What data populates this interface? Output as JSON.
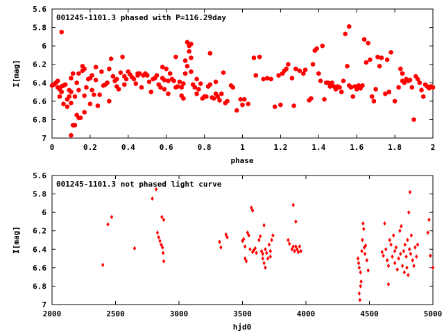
{
  "chart_data": [
    {
      "type": "scatter",
      "title": "001245-1101.3 phased with P=116.29day",
      "xlabel": "phase",
      "ylabel": "I[mag]",
      "xlim": [
        0,
        2
      ],
      "ylim": [
        5.6,
        7
      ],
      "y_inverted": true,
      "grid": false,
      "xticks": [
        "0",
        "0.2",
        "0.4",
        "0.6",
        "0.8",
        "1",
        "1.2",
        "1.4",
        "1.6",
        "1.8",
        "2"
      ],
      "yticks": [
        "5.6",
        "5.8",
        "6",
        "6.2",
        "6.4",
        "6.6",
        "6.8",
        "7"
      ],
      "marker": "hexagon",
      "color": "#ff0000",
      "points": [
        [
          0.0,
          6.43
        ],
        [
          0.01,
          6.42
        ],
        [
          0.02,
          6.4
        ],
        [
          0.03,
          6.38
        ],
        [
          0.03,
          6.45
        ],
        [
          0.04,
          6.47
        ],
        [
          0.04,
          6.55
        ],
        [
          0.05,
          5.85
        ],
        [
          0.05,
          6.44
        ],
        [
          0.05,
          6.5
        ],
        [
          0.06,
          6.43
        ],
        [
          0.06,
          6.63
        ],
        [
          0.07,
          6.42
        ],
        [
          0.08,
          6.58
        ],
        [
          0.08,
          6.66
        ],
        [
          0.09,
          6.55
        ],
        [
          0.09,
          6.48
        ],
        [
          0.1,
          6.62
        ],
        [
          0.1,
          6.35
        ],
        [
          0.1,
          6.5
        ],
        [
          0.1,
          6.97
        ],
        [
          0.11,
          6.86
        ],
        [
          0.11,
          6.3
        ],
        [
          0.12,
          6.86
        ],
        [
          0.12,
          6.55
        ],
        [
          0.13,
          6.75
        ],
        [
          0.13,
          6.4
        ],
        [
          0.14,
          6.48
        ],
        [
          0.14,
          6.78
        ],
        [
          0.14,
          6.3
        ],
        [
          0.15,
          6.78
        ],
        [
          0.16,
          6.27
        ],
        [
          0.16,
          6.22
        ],
        [
          0.17,
          6.72
        ],
        [
          0.17,
          6.54
        ],
        [
          0.17,
          6.25
        ],
        [
          0.18,
          6.45
        ],
        [
          0.19,
          6.36
        ],
        [
          0.2,
          6.35
        ],
        [
          0.2,
          6.63
        ],
        [
          0.21,
          6.32
        ],
        [
          0.21,
          6.48
        ],
        [
          0.22,
          6.53
        ],
        [
          0.23,
          6.37
        ],
        [
          0.23,
          6.23
        ],
        [
          0.24,
          6.65
        ],
        [
          0.25,
          6.53
        ],
        [
          0.26,
          6.28
        ],
        [
          0.27,
          6.43
        ],
        [
          0.28,
          6.42
        ],
        [
          0.29,
          6.4
        ],
        [
          0.3,
          6.6
        ],
        [
          0.3,
          6.25
        ],
        [
          0.31,
          6.14
        ],
        [
          0.32,
          6.33
        ],
        [
          0.33,
          6.38
        ],
        [
          0.34,
          6.36
        ],
        [
          0.34,
          6.44
        ],
        [
          0.35,
          6.47
        ],
        [
          0.36,
          6.29
        ],
        [
          0.37,
          6.12
        ],
        [
          0.38,
          6.33
        ],
        [
          0.38,
          6.42
        ],
        [
          0.39,
          6.36
        ],
        [
          0.4,
          6.28
        ],
        [
          0.41,
          6.31
        ],
        [
          0.42,
          6.34
        ],
        [
          0.43,
          6.36
        ],
        [
          0.44,
          6.41
        ],
        [
          0.45,
          6.3
        ],
        [
          0.45,
          6.32
        ],
        [
          0.46,
          6.3
        ],
        [
          0.47,
          6.45
        ],
        [
          0.48,
          6.32
        ],
        [
          0.49,
          6.3
        ],
        [
          0.5,
          6.32
        ],
        [
          0.51,
          6.39
        ],
        [
          0.52,
          6.5
        ],
        [
          0.53,
          6.36
        ],
        [
          0.54,
          6.35
        ],
        [
          0.55,
          6.32
        ],
        [
          0.56,
          6.42
        ],
        [
          0.57,
          6.45
        ],
        [
          0.58,
          6.23
        ],
        [
          0.58,
          6.35
        ],
        [
          0.59,
          6.37
        ],
        [
          0.59,
          6.47
        ],
        [
          0.6,
          6.25
        ],
        [
          0.61,
          6.38
        ],
        [
          0.61,
          6.52
        ],
        [
          0.62,
          6.3
        ],
        [
          0.63,
          6.36
        ],
        [
          0.64,
          6.38
        ],
        [
          0.65,
          6.45
        ],
        [
          0.65,
          6.12
        ],
        [
          0.66,
          6.44
        ],
        [
          0.67,
          6.39
        ],
        [
          0.68,
          6.45
        ],
        [
          0.68,
          6.54
        ],
        [
          0.69,
          6.41
        ],
        [
          0.69,
          6.57
        ],
        [
          0.7,
          6.3
        ],
        [
          0.7,
          6.16
        ],
        [
          0.71,
          6.22
        ],
        [
          0.71,
          5.96
        ],
        [
          0.72,
          6.0
        ],
        [
          0.72,
          6.06
        ],
        [
          0.73,
          6.13
        ],
        [
          0.73,
          5.98
        ],
        [
          0.73,
          6.28
        ],
        [
          0.74,
          6.42
        ],
        [
          0.75,
          6.45
        ],
        [
          0.76,
          6.52
        ],
        [
          0.76,
          6.36
        ],
        [
          0.77,
          6.47
        ],
        [
          0.78,
          6.41
        ],
        [
          0.79,
          6.57
        ],
        [
          0.8,
          6.55
        ],
        [
          0.81,
          6.55
        ],
        [
          0.82,
          6.44
        ],
        [
          0.83,
          6.42
        ],
        [
          0.83,
          6.08
        ],
        [
          0.84,
          6.56
        ],
        [
          0.85,
          6.57
        ],
        [
          0.86,
          6.39
        ],
        [
          0.86,
          6.52
        ],
        [
          0.87,
          6.55
        ],
        [
          0.88,
          6.59
        ],
        [
          0.89,
          6.52
        ],
        [
          0.9,
          6.29
        ],
        [
          0.91,
          6.62
        ],
        [
          0.92,
          6.6
        ],
        [
          0.94,
          6.43
        ],
        [
          0.95,
          6.45
        ],
        [
          0.97,
          6.7
        ],
        [
          0.99,
          6.58
        ],
        [
          1.0,
          6.64
        ],
        [
          1.01,
          6.58
        ],
        [
          1.03,
          6.63
        ],
        [
          1.06,
          6.13
        ],
        [
          1.07,
          6.32
        ],
        [
          1.09,
          6.12
        ],
        [
          1.11,
          6.36
        ],
        [
          1.13,
          6.35
        ],
        [
          1.15,
          6.36
        ],
        [
          1.17,
          6.66
        ],
        [
          1.19,
          6.32
        ],
        [
          1.2,
          6.64
        ],
        [
          1.21,
          6.3
        ],
        [
          1.22,
          6.27
        ],
        [
          1.23,
          6.25
        ],
        [
          1.24,
          6.2
        ],
        [
          1.26,
          6.35
        ],
        [
          1.27,
          6.65
        ],
        [
          1.28,
          6.25
        ],
        [
          1.3,
          6.27
        ],
        [
          1.32,
          6.3
        ],
        [
          1.33,
          6.26
        ],
        [
          1.35,
          6.59
        ],
        [
          1.36,
          6.57
        ],
        [
          1.37,
          6.2
        ],
        [
          1.38,
          6.05
        ],
        [
          1.39,
          6.03
        ],
        [
          1.4,
          6.3
        ],
        [
          1.41,
          6.38
        ],
        [
          1.42,
          6.0
        ],
        [
          1.43,
          6.58
        ],
        [
          1.44,
          6.4
        ],
        [
          1.45,
          6.4
        ],
        [
          1.46,
          6.44
        ],
        [
          1.47,
          6.4
        ],
        [
          1.48,
          6.44
        ],
        [
          1.49,
          6.47
        ],
        [
          1.5,
          6.44
        ],
        [
          1.51,
          6.45
        ],
        [
          1.52,
          6.5
        ],
        [
          1.53,
          6.38
        ],
        [
          1.54,
          5.87
        ],
        [
          1.55,
          6.22
        ],
        [
          1.56,
          5.79
        ],
        [
          1.56,
          6.43
        ],
        [
          1.57,
          6.45
        ],
        [
          1.58,
          6.55
        ],
        [
          1.59,
          6.44
        ],
        [
          1.6,
          6.47
        ],
        [
          1.61,
          6.43
        ],
        [
          1.62,
          6.46
        ],
        [
          1.63,
          6.43
        ],
        [
          1.64,
          5.93
        ],
        [
          1.65,
          6.18
        ],
        [
          1.66,
          5.97
        ],
        [
          1.67,
          6.15
        ],
        [
          1.68,
          6.55
        ],
        [
          1.69,
          6.6
        ],
        [
          1.7,
          6.47
        ],
        [
          1.71,
          6.12
        ],
        [
          1.72,
          6.22
        ],
        [
          1.73,
          6.13
        ],
        [
          1.75,
          6.52
        ],
        [
          1.76,
          6.15
        ],
        [
          1.77,
          6.5
        ],
        [
          1.78,
          6.07
        ],
        [
          1.8,
          6.6
        ],
        [
          1.82,
          6.45
        ],
        [
          1.83,
          6.25
        ],
        [
          1.84,
          6.3
        ],
        [
          1.84,
          6.38
        ],
        [
          1.85,
          6.4
        ],
        [
          1.86,
          6.36
        ],
        [
          1.87,
          6.38
        ],
        [
          1.88,
          6.37
        ],
        [
          1.89,
          6.45
        ],
        [
          1.9,
          6.8
        ],
        [
          1.91,
          6.33
        ],
        [
          1.92,
          6.36
        ],
        [
          1.93,
          6.4
        ],
        [
          1.94,
          6.48
        ],
        [
          1.95,
          6.55
        ],
        [
          1.96,
          6.42
        ],
        [
          1.97,
          6.44
        ],
        [
          1.98,
          6.46
        ],
        [
          1.99,
          6.44
        ],
        [
          2.0,
          6.45
        ]
      ]
    },
    {
      "type": "scatter",
      "title": "001245-1101.3 not phased light curve",
      "xlabel": "hjd0",
      "ylabel": "I[mag]",
      "xlim": [
        2000,
        5000
      ],
      "ylim": [
        5.6,
        7
      ],
      "y_inverted": true,
      "grid": false,
      "xticks": [
        "2000",
        "2500",
        "3000",
        "3500",
        "4000",
        "4500",
        "5000"
      ],
      "yticks": [
        "5.6",
        "5.8",
        "6",
        "6.2",
        "6.4",
        "6.6",
        "6.8",
        "7"
      ],
      "marker": "diamond",
      "color": "#ff0000",
      "points": [
        [
          2400,
          6.57
        ],
        [
          2440,
          6.13
        ],
        [
          2470,
          6.05
        ],
        [
          2650,
          6.39
        ],
        [
          2790,
          5.85
        ],
        [
          2820,
          5.75
        ],
        [
          2830,
          6.22
        ],
        [
          2840,
          6.27
        ],
        [
          2850,
          6.31
        ],
        [
          2860,
          6.35
        ],
        [
          2865,
          6.05
        ],
        [
          2870,
          6.38
        ],
        [
          2875,
          6.44
        ],
        [
          2880,
          6.08
        ],
        [
          2880,
          6.53
        ],
        [
          3320,
          6.32
        ],
        [
          3330,
          6.38
        ],
        [
          3370,
          6.24
        ],
        [
          3380,
          6.27
        ],
        [
          3500,
          6.31
        ],
        [
          3510,
          6.29
        ],
        [
          3520,
          6.37
        ],
        [
          3520,
          6.5
        ],
        [
          3530,
          6.53
        ],
        [
          3540,
          6.22
        ],
        [
          3550,
          6.25
        ],
        [
          3560,
          6.4
        ],
        [
          3570,
          5.95
        ],
        [
          3580,
          5.98
        ],
        [
          3580,
          6.43
        ],
        [
          3590,
          6.41
        ],
        [
          3600,
          6.39
        ],
        [
          3610,
          6.44
        ],
        [
          3630,
          6.3
        ],
        [
          3640,
          6.26
        ],
        [
          3650,
          6.42
        ],
        [
          3660,
          6.45
        ],
        [
          3660,
          6.5
        ],
        [
          3670,
          6.14
        ],
        [
          3670,
          6.55
        ],
        [
          3680,
          6.4
        ],
        [
          3680,
          6.6
        ],
        [
          3690,
          6.44
        ],
        [
          3700,
          6.5
        ],
        [
          3710,
          6.35
        ],
        [
          3720,
          6.42
        ],
        [
          3720,
          6.48
        ],
        [
          3730,
          6.3
        ],
        [
          3740,
          6.25
        ],
        [
          3860,
          6.3
        ],
        [
          3870,
          6.34
        ],
        [
          3890,
          6.4
        ],
        [
          3900,
          5.92
        ],
        [
          3900,
          6.37
        ],
        [
          3910,
          6.42
        ],
        [
          3920,
          6.1
        ],
        [
          3920,
          6.37
        ],
        [
          3930,
          6.4
        ],
        [
          3940,
          6.43
        ],
        [
          3950,
          6.37
        ],
        [
          3960,
          6.42
        ],
        [
          4410,
          6.5
        ],
        [
          4415,
          6.55
        ],
        [
          4420,
          6.6
        ],
        [
          4420,
          6.88
        ],
        [
          4425,
          6.95
        ],
        [
          4430,
          6.65
        ],
        [
          4430,
          6.8
        ],
        [
          4435,
          6.75
        ],
        [
          4440,
          6.42
        ],
        [
          4445,
          6.3
        ],
        [
          4450,
          6.12
        ],
        [
          4455,
          6.18
        ],
        [
          4460,
          6.38
        ],
        [
          4465,
          6.45
        ],
        [
          4470,
          6.36
        ],
        [
          4480,
          6.52
        ],
        [
          4490,
          6.63
        ],
        [
          4600,
          6.43
        ],
        [
          4610,
          6.47
        ],
        [
          4620,
          6.12
        ],
        [
          4630,
          6.4
        ],
        [
          4640,
          6.52
        ],
        [
          4650,
          6.58
        ],
        [
          4650,
          6.78
        ],
        [
          4660,
          6.3
        ],
        [
          4670,
          6.35
        ],
        [
          4680,
          6.48
        ],
        [
          4690,
          6.25
        ],
        [
          4700,
          6.42
        ],
        [
          4700,
          6.55
        ],
        [
          4710,
          6.38
        ],
        [
          4720,
          6.62
        ],
        [
          4730,
          6.5
        ],
        [
          4740,
          6.2
        ],
        [
          4745,
          6.45
        ],
        [
          4750,
          6.15
        ],
        [
          4760,
          6.58
        ],
        [
          4770,
          6.42
        ],
        [
          4775,
          6.65
        ],
        [
          4780,
          6.35
        ],
        [
          4790,
          6.48
        ],
        [
          4795,
          6.6
        ],
        [
          4800,
          6.3
        ],
        [
          4805,
          6.68
        ],
        [
          4810,
          6.0
        ],
        [
          4815,
          6.4
        ],
        [
          4820,
          5.78
        ],
        [
          4825,
          6.45
        ],
        [
          4830,
          6.25
        ],
        [
          4840,
          6.52
        ],
        [
          4850,
          6.58
        ],
        [
          4860,
          6.38
        ],
        [
          4870,
          6.48
        ],
        [
          4880,
          6.35
        ],
        [
          4960,
          6.22
        ],
        [
          4970,
          6.08
        ],
        [
          4980,
          6.47
        ],
        [
          5000,
          6.6
        ]
      ]
    }
  ]
}
